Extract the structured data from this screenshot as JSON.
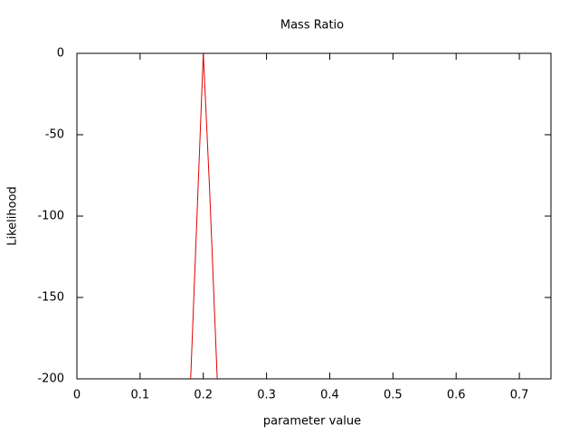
{
  "chart_data": {
    "type": "line",
    "title": "Mass Ratio",
    "x_label": "parameter value",
    "y_label": "Likelihood",
    "x": [
      0.18,
      0.2,
      0.21,
      0.222
    ],
    "values": [
      -200,
      0,
      -84,
      -200
    ],
    "color": "#e00000",
    "xlim": [
      0,
      0.75
    ],
    "xticks": [
      0,
      0.1,
      0.2,
      0.3,
      0.4,
      0.5,
      0.6,
      0.7
    ],
    "ylim": [
      -200,
      0
    ],
    "yticks": [
      0,
      -50,
      -100,
      -150,
      -200
    ],
    "grid": false
  }
}
